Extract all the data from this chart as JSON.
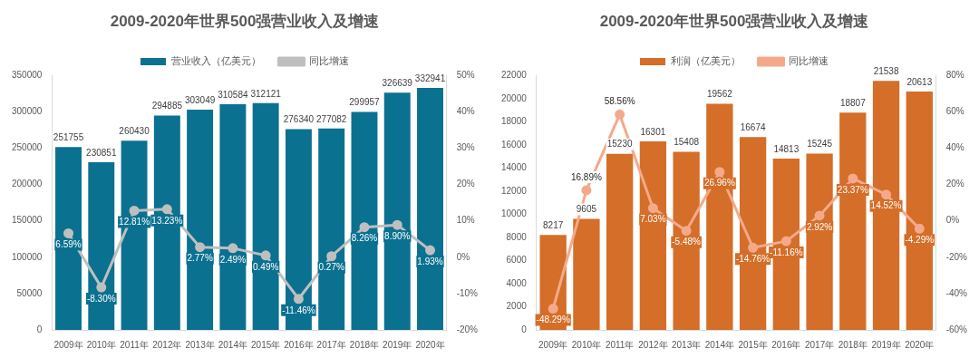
{
  "chart_data": [
    {
      "type": "bar",
      "title": "2009-2020年世界500强营业收入及增速",
      "categories": [
        "2009年",
        "2010年",
        "2011年",
        "2012年",
        "2013年",
        "2014年",
        "2015年",
        "2016年",
        "2017年",
        "2018年",
        "2019年",
        "2020年"
      ],
      "ylim": [
        0,
        350000
      ],
      "yticks": [
        0,
        50000,
        100000,
        150000,
        200000,
        250000,
        300000,
        350000
      ],
      "y2lim": [
        -20,
        50
      ],
      "y2ticks": [
        {
          "value": -20,
          "label": "-20%"
        },
        {
          "value": -10,
          "label": "-10%"
        },
        {
          "value": 0,
          "label": "0%"
        },
        {
          "value": 10,
          "label": "10%"
        },
        {
          "value": 20,
          "label": "20%"
        },
        {
          "value": 30,
          "label": "30%"
        },
        {
          "value": 40,
          "label": "40%"
        },
        {
          "value": 50,
          "label": "50%"
        }
      ],
      "legend": "top",
      "grid": false,
      "marker": "circle",
      "series": [
        {
          "name": "营业收入（亿美元）",
          "color": "#0b7190",
          "values": [
            251755,
            230851,
            260430,
            294885,
            303049,
            310584,
            312121,
            276340,
            277082,
            299957,
            326639,
            332941
          ],
          "value_labels": [
            "251755",
            "230851",
            "260430",
            "294885",
            "303049",
            "310584",
            "312121",
            "276340",
            "277082",
            "299957",
            "326639",
            "332941"
          ]
        },
        {
          "name": "同比增速",
          "type": "line",
          "axis": "y2",
          "color": "#bfbfbf",
          "values": [
            6.59,
            -8.3,
            12.81,
            13.23,
            2.77,
            2.49,
            0.49,
            -11.46,
            0.27,
            8.26,
            8.9,
            1.93
          ],
          "value_labels": [
            "6.59%",
            "-8.30%",
            "12.81%",
            "13.23%",
            "2.77%",
            "2.49%",
            "0.49%",
            "-11.46%",
            "0.27%",
            "8.26%",
            "8.90%",
            "1.93%"
          ]
        }
      ]
    },
    {
      "type": "bar",
      "title": "2009-2020年世界500强营业收入及增速",
      "categories": [
        "2009年",
        "2010年",
        "2011年",
        "2012年",
        "2013年",
        "2014年",
        "2015年",
        "2016年",
        "2017年",
        "2018年",
        "2019年",
        "2020年"
      ],
      "ylim": [
        0,
        22000
      ],
      "yticks": [
        0,
        2000,
        4000,
        6000,
        8000,
        10000,
        12000,
        14000,
        16000,
        18000,
        20000,
        22000
      ],
      "y2lim": [
        -60,
        80
      ],
      "y2ticks": [
        {
          "value": -60,
          "label": "-60%"
        },
        {
          "value": -40,
          "label": "-40%"
        },
        {
          "value": -20,
          "label": "-20%"
        },
        {
          "value": 0,
          "label": "0%"
        },
        {
          "value": 20,
          "label": "20%"
        },
        {
          "value": 40,
          "label": "40%"
        },
        {
          "value": 60,
          "label": "60%"
        },
        {
          "value": 80,
          "label": "80%"
        }
      ],
      "legend": "top",
      "grid": false,
      "marker": "circle",
      "series": [
        {
          "name": "利润（亿美元）",
          "color": "#d46e28",
          "values": [
            8217,
            9605,
            15230,
            16301,
            15408,
            19562,
            16674,
            14813,
            15245,
            18807,
            21538,
            20613
          ],
          "value_labels": [
            "8217",
            "9605",
            "15230",
            "16301",
            "15408",
            "19562",
            "16674",
            "14813",
            "15245",
            "18807",
            "21538",
            "20613"
          ]
        },
        {
          "name": "同比增速",
          "type": "line",
          "axis": "y2",
          "color": "#f4a98a",
          "values": [
            -48.29,
            16.89,
            58.56,
            7.03,
            -5.48,
            26.96,
            -14.76,
            -11.16,
            2.92,
            23.37,
            14.52,
            -4.29
          ],
          "value_labels": [
            "-48.29%",
            "16.89%",
            "58.56%",
            "7.03%",
            "-5.48%",
            "26.96%",
            "-14.76%",
            "-11.16%",
            "2.92%",
            "23.37%",
            "14.52%",
            "-4.29%"
          ]
        }
      ]
    }
  ]
}
